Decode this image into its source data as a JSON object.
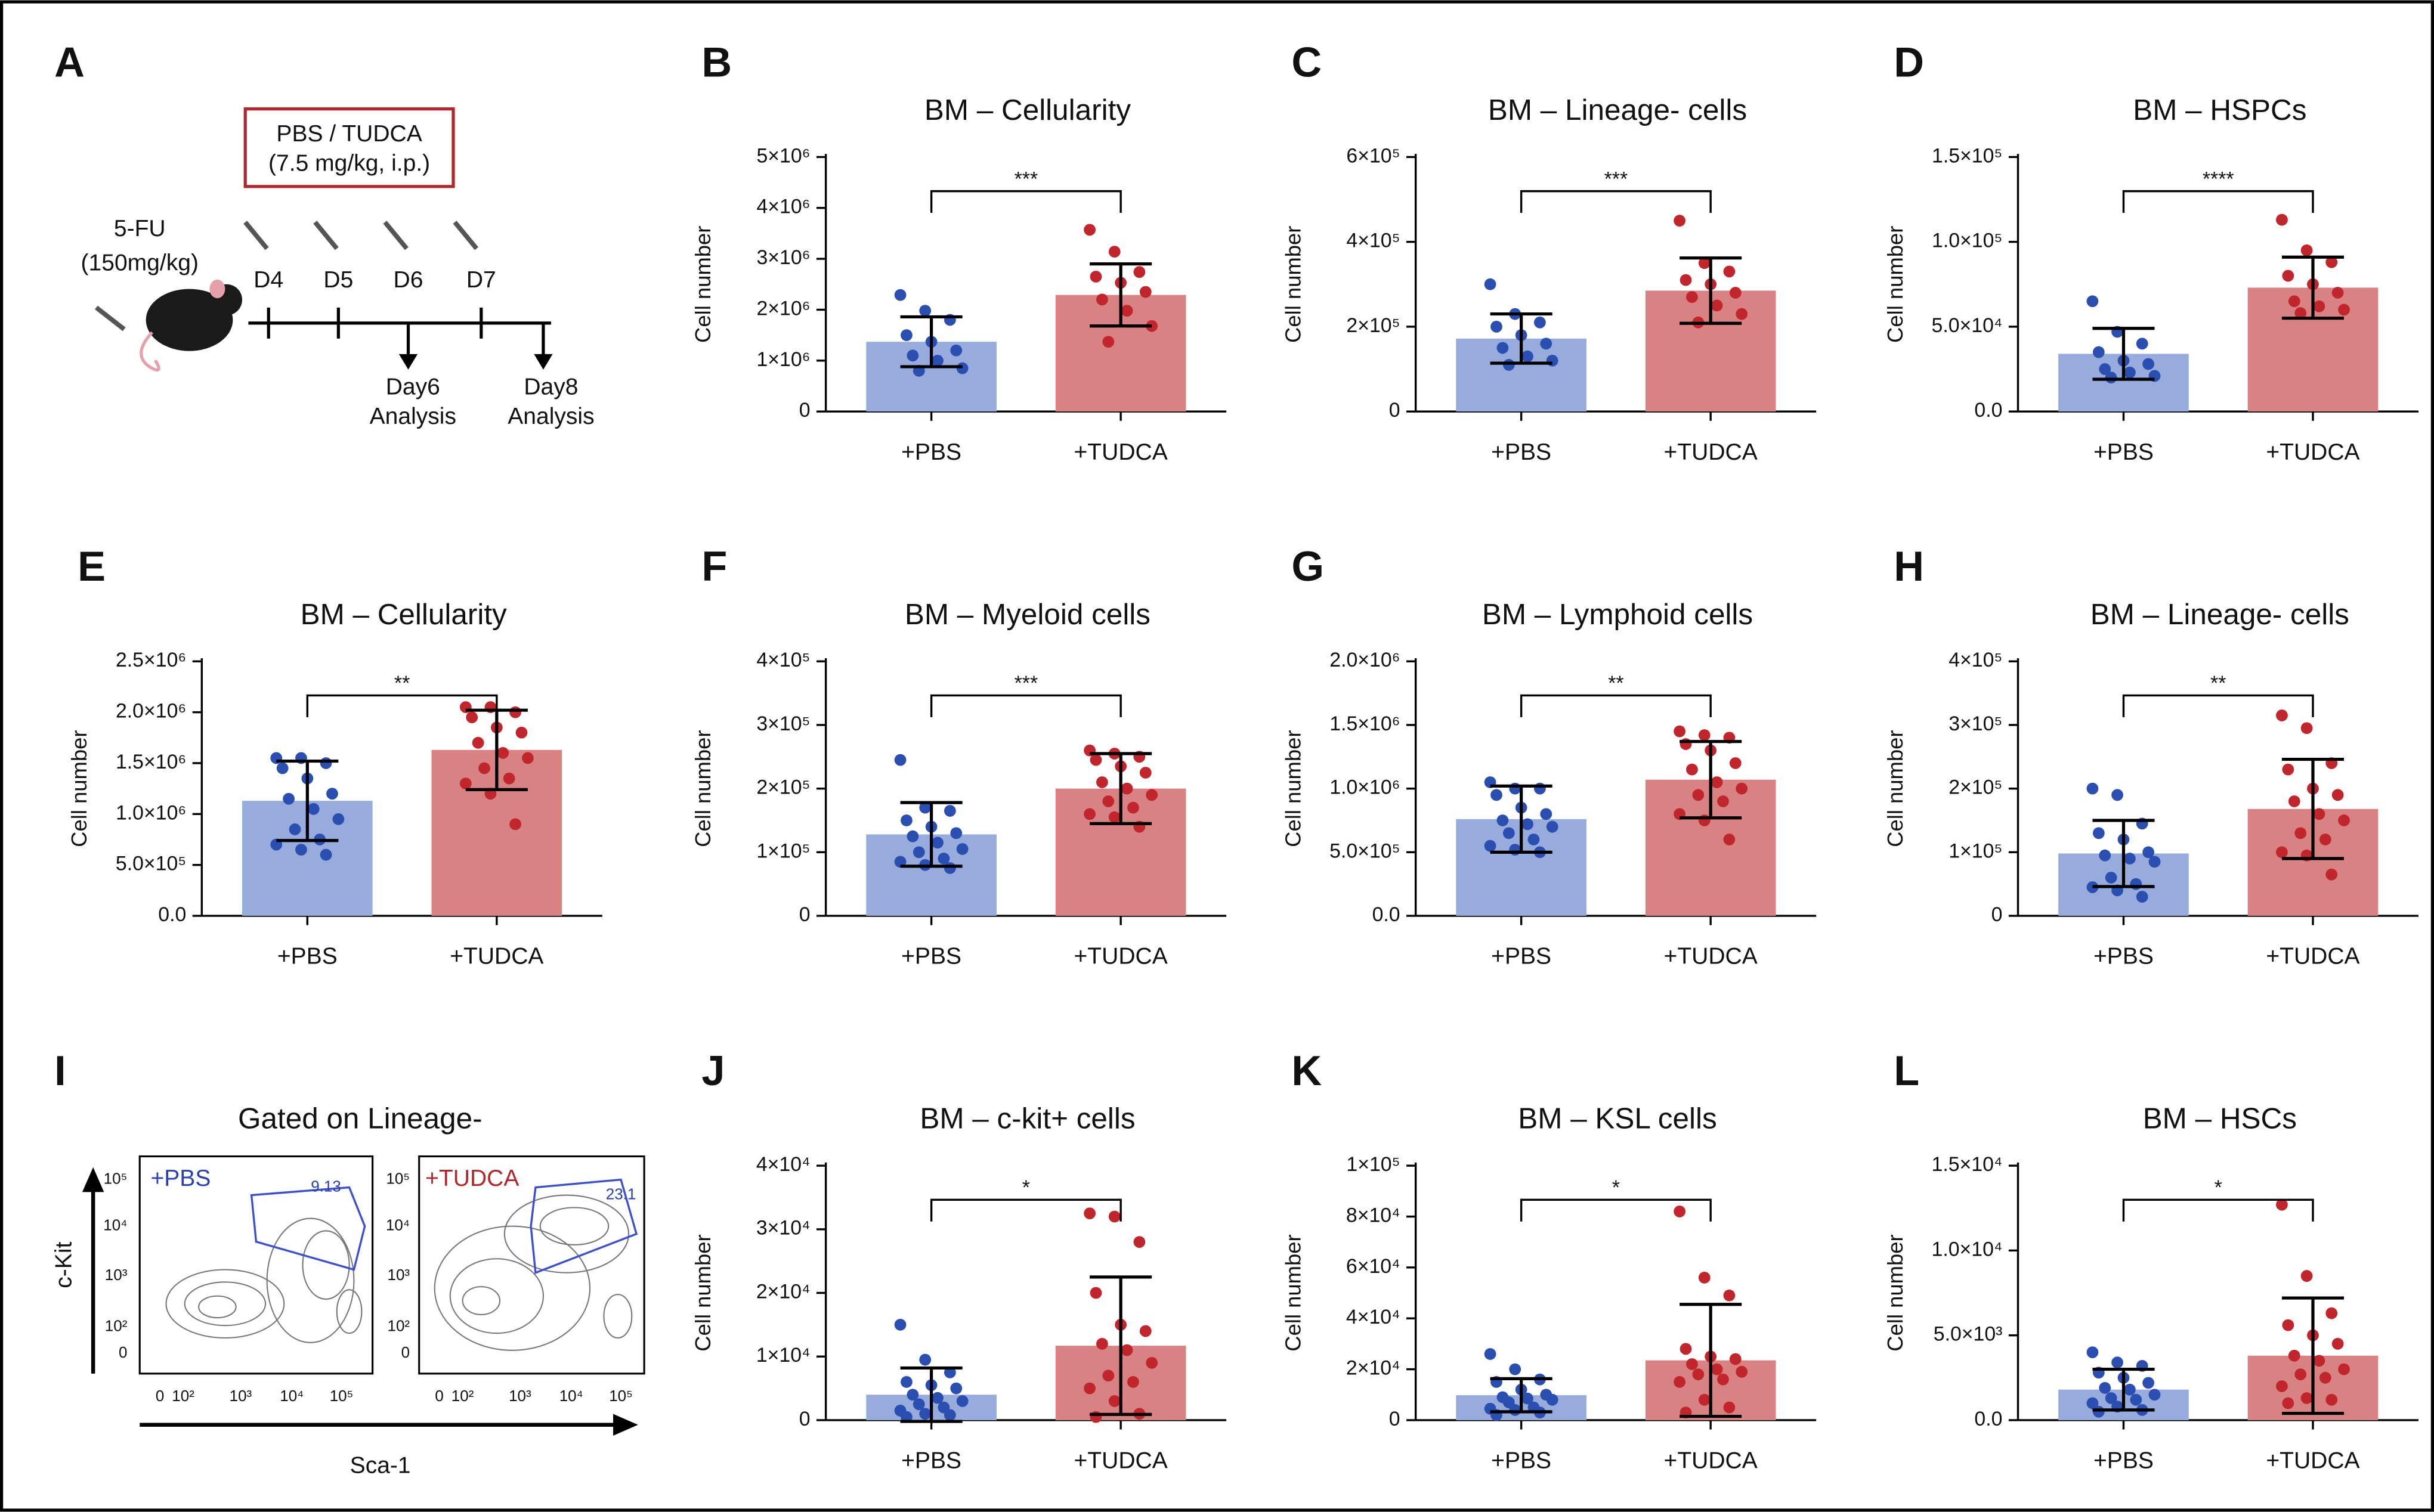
{
  "schematic": {
    "panel": "A",
    "treatment": "PBS / TUDCA",
    "dose": "(7.5 mg/kg, i.p.)",
    "drug": "5-FU",
    "drug_dose": "(150mg/kg)",
    "days": [
      "D4",
      "D5",
      "D6",
      "D7"
    ],
    "analyses": [
      [
        "Day6",
        "Analysis"
      ],
      [
        "Day8",
        "Analysis"
      ]
    ]
  },
  "flow": {
    "panel": "I",
    "title": "Gated on Lineage-",
    "samples": [
      "+PBS",
      "+TUDCA"
    ],
    "gates": [
      "9.13",
      "23.1"
    ],
    "y_axis": "c-Kit",
    "x_axis": "Sca-1",
    "yticks": [
      "10⁵",
      "10⁴",
      "10³",
      "10²",
      "0"
    ],
    "xticks": [
      "0",
      "10²",
      "10³",
      "10⁴",
      "10⁵"
    ]
  },
  "chart_data": [
    {
      "type": "bar",
      "panel": "B",
      "title": "BM – Cellularity",
      "y_label": "Cell number",
      "categories": [
        "+PBS",
        "+TUDCA"
      ],
      "values": [
        1370000.0,
        2290000.0
      ],
      "errors": [
        490000.0,
        610000.0
      ],
      "significance": "***",
      "points": [
        [
          2290000.0,
          1980000.0,
          1800000.0,
          1500000.0,
          1370000.0,
          1200000.0,
          1100000.0,
          1000000.0,
          850000.0,
          800000.0
        ],
        [
          3570000.0,
          3140000.0,
          2740000.0,
          2650000.0,
          2530000.0,
          2350000.0,
          2200000.0,
          1980000.0,
          1680000.0,
          1370000.0
        ]
      ],
      "ylim": [
        0,
        5000000.0
      ],
      "yticks": [
        0,
        {
          "value": 1000000.0,
          "label": "1×10⁶"
        },
        {
          "value": 2000000.0,
          "label": "2×10⁶"
        },
        {
          "value": 3000000.0,
          "label": "3×10⁶"
        },
        {
          "value": 4000000.0,
          "label": "4×10⁶"
        },
        {
          "value": 5000000.0,
          "label": "5×10⁶"
        }
      ],
      "colors": [
        "#97abdc",
        "#d98283"
      ],
      "point_colors": [
        "#2a4fb0",
        "#c0262b"
      ]
    },
    {
      "type": "bar",
      "panel": "C",
      "title": "BM – Lineage- cells",
      "y_label": "Cell number",
      "categories": [
        "+PBS",
        "+TUDCA"
      ],
      "values": [
        172000.0,
        285000.0
      ],
      "errors": [
        58000.0,
        77000.0
      ],
      "significance": "***",
      "points": [
        [
          300000.0,
          230000.0,
          210000.0,
          200000.0,
          180000.0,
          160000.0,
          150000.0,
          130000.0,
          120000.0,
          110000.0
        ],
        [
          450000.0,
          350000.0,
          330000.0,
          310000.0,
          300000.0,
          280000.0,
          270000.0,
          250000.0,
          230000.0,
          210000.0
        ]
      ],
      "ylim": [
        0,
        600000.0
      ],
      "yticks": [
        0,
        {
          "value": 200000.0,
          "label": "2×10⁵"
        },
        {
          "value": 400000.0,
          "label": "4×10⁵"
        },
        {
          "value": 600000.0,
          "label": "6×10⁵"
        }
      ],
      "colors": [
        "#97abdc",
        "#d98283"
      ],
      "point_colors": [
        "#2a4fb0",
        "#c0262b"
      ]
    },
    {
      "type": "bar",
      "panel": "D",
      "title": "BM – HSPCs",
      "y_label": "Cell number",
      "categories": [
        "+PBS",
        "+TUDCA"
      ],
      "values": [
        34000.0,
        73000.0
      ],
      "errors": [
        15000.0,
        18000.0
      ],
      "significance": "****",
      "points": [
        [
          65000.0,
          47000.0,
          40000.0,
          35000.0,
          30000.0,
          28000.0,
          25000.0,
          23000.0,
          21000.0,
          20000.0
        ],
        [
          113000.0,
          95000.0,
          88000.0,
          80000.0,
          75000.0,
          70000.0,
          65000.0,
          62000.0,
          60000.0,
          58000.0
        ]
      ],
      "ylim": [
        0,
        150000.0
      ],
      "yticks": [
        {
          "value": 0,
          "label": "0.0"
        },
        {
          "value": 50000.0,
          "label": "5.0×10⁴"
        },
        {
          "value": 100000.0,
          "label": "1.0×10⁵"
        },
        {
          "value": 150000.0,
          "label": "1.5×10⁵"
        }
      ],
      "colors": [
        "#97abdc",
        "#d98283"
      ],
      "point_colors": [
        "#2a4fb0",
        "#c0262b"
      ]
    },
    {
      "type": "bar",
      "panel": "E",
      "title": "BM – Cellularity",
      "y_label": "Cell number",
      "categories": [
        "+PBS",
        "+TUDCA"
      ],
      "values": [
        1130000.0,
        1630000.0
      ],
      "errors": [
        390000.0,
        390000.0
      ],
      "significance": "**",
      "points": [
        [
          1550000.0,
          1550000.0,
          1500000.0,
          1450000.0,
          1350000.0,
          1200000.0,
          1150000.0,
          1050000.0,
          950000.0,
          850000.0,
          750000.0,
          700000.0,
          650000.0,
          600000.0
        ],
        [
          2050000.0,
          2050000.0,
          2000000.0,
          1950000.0,
          1850000.0,
          1800000.0,
          1700000.0,
          1600000.0,
          1550000.0,
          1450000.0,
          1350000.0,
          1300000.0,
          1200000.0,
          900000.0
        ]
      ],
      "ylim": [
        0,
        2500000.0
      ],
      "yticks": [
        {
          "value": 0,
          "label": "0.0"
        },
        {
          "value": 500000.0,
          "label": "5.0×10⁵"
        },
        {
          "value": 1000000.0,
          "label": "1.0×10⁶"
        },
        {
          "value": 1500000.0,
          "label": "1.5×10⁶"
        },
        {
          "value": 2000000.0,
          "label": "2.0×10⁶"
        },
        {
          "value": 2500000.0,
          "label": "2.5×10⁶"
        }
      ],
      "colors": [
        "#97abdc",
        "#d98283"
      ],
      "point_colors": [
        "#2a4fb0",
        "#c0262b"
      ]
    },
    {
      "type": "bar",
      "panel": "F",
      "title": "BM – Myeloid cells",
      "y_label": "Cell number",
      "categories": [
        "+PBS",
        "+TUDCA"
      ],
      "values": [
        128000.0,
        200000.0
      ],
      "errors": [
        50000.0,
        55000.0
      ],
      "significance": "***",
      "points": [
        [
          245000.0,
          170000.0,
          165000.0,
          150000.0,
          140000.0,
          130000.0,
          125000.0,
          115000.0,
          105000.0,
          100000.0,
          90000.0,
          85000.0,
          80000.0,
          75000.0
        ],
        [
          260000.0,
          255000.0,
          250000.0,
          245000.0,
          235000.0,
          225000.0,
          210000.0,
          200000.0,
          190000.0,
          180000.0,
          170000.0,
          160000.0,
          155000.0,
          140000.0
        ]
      ],
      "ylim": [
        0,
        400000.0
      ],
      "yticks": [
        0,
        {
          "value": 100000.0,
          "label": "1×10⁵"
        },
        {
          "value": 200000.0,
          "label": "2×10⁵"
        },
        {
          "value": 300000.0,
          "label": "3×10⁵"
        },
        {
          "value": 400000.0,
          "label": "4×10⁵"
        }
      ],
      "colors": [
        "#97abdc",
        "#d98283"
      ],
      "point_colors": [
        "#2a4fb0",
        "#c0262b"
      ]
    },
    {
      "type": "bar",
      "panel": "G",
      "title": "BM – Lymphoid cells",
      "y_label": "Cell number",
      "categories": [
        "+PBS",
        "+TUDCA"
      ],
      "values": [
        760000.0,
        1070000.0
      ],
      "errors": [
        260000.0,
        300000.0
      ],
      "significance": "**",
      "points": [
        [
          1050000.0,
          1000000.0,
          1000000.0,
          950000.0,
          850000.0,
          800000.0,
          750000.0,
          720000.0,
          700000.0,
          650000.0,
          600000.0,
          550000.0,
          520000.0,
          500000.0
        ],
        [
          1450000.0,
          1420000.0,
          1400000.0,
          1350000.0,
          1300000.0,
          1200000.0,
          1150000.0,
          1050000.0,
          1000000.0,
          950000.0,
          900000.0,
          800000.0,
          750000.0,
          600000.0
        ]
      ],
      "ylim": [
        0,
        2000000.0
      ],
      "yticks": [
        {
          "value": 0,
          "label": "0.0"
        },
        {
          "value": 500000.0,
          "label": "5.0×10⁵"
        },
        {
          "value": 1000000.0,
          "label": "1.0×10⁶"
        },
        {
          "value": 1500000.0,
          "label": "1.5×10⁶"
        },
        {
          "value": 2000000.0,
          "label": "2.0×10⁶"
        }
      ],
      "colors": [
        "#97abdc",
        "#d98283"
      ],
      "point_colors": [
        "#2a4fb0",
        "#c0262b"
      ]
    },
    {
      "type": "bar",
      "panel": "H",
      "title": "BM – Lineage- cells",
      "y_label": "Cell number",
      "categories": [
        "+PBS",
        "+TUDCA"
      ],
      "values": [
        98000.0,
        168000.0
      ],
      "errors": [
        52000.0,
        78000.0
      ],
      "significance": "**",
      "points": [
        [
          200000.0,
          190000.0,
          145000.0,
          130000.0,
          120000.0,
          100000.0,
          95000.0,
          90000.0,
          85000.0,
          60000.0,
          50000.0,
          45000.0,
          40000.0,
          30000.0
        ],
        [
          315000.0,
          295000.0,
          240000.0,
          230000.0,
          200000.0,
          190000.0,
          180000.0,
          160000.0,
          150000.0,
          130000.0,
          120000.0,
          100000.0,
          95000.0,
          65000.0
        ]
      ],
      "ylim": [
        0,
        400000.0
      ],
      "yticks": [
        0,
        {
          "value": 100000.0,
          "label": "1×10⁵"
        },
        {
          "value": 200000.0,
          "label": "2×10⁵"
        },
        {
          "value": 300000.0,
          "label": "3×10⁵"
        },
        {
          "value": 400000.0,
          "label": "4×10⁵"
        }
      ],
      "colors": [
        "#97abdc",
        "#d98283"
      ],
      "point_colors": [
        "#2a4fb0",
        "#c0262b"
      ]
    },
    {
      "type": "bar",
      "panel": "J",
      "title": "BM – c-kit+ cells",
      "y_label": "Cell number",
      "categories": [
        "+PBS",
        "+TUDCA"
      ],
      "values": [
        4000.0,
        11700.0
      ],
      "errors": [
        4200.0,
        10800.0
      ],
      "significance": "*",
      "points": [
        [
          15000.0,
          9500.0,
          7500.0,
          6000.0,
          5500.0,
          5000.0,
          4000.0,
          3500.0,
          3000.0,
          2500.0,
          2000.0,
          1500.0,
          1000.0,
          800.0,
          500.0
        ],
        [
          32500.0,
          32000.0,
          28000.0,
          20000.0,
          15000.0,
          14000.0,
          12000.0,
          11000.0,
          9000.0,
          7000.0,
          6000.0,
          5000.0,
          3000.0,
          1000.0,
          500.0
        ]
      ],
      "ylim": [
        0,
        40000.0
      ],
      "yticks": [
        0,
        {
          "value": 10000.0,
          "label": "1×10⁴"
        },
        {
          "value": 20000.0,
          "label": "2×10⁴"
        },
        {
          "value": 30000.0,
          "label": "3×10⁴"
        },
        {
          "value": 40000.0,
          "label": "4×10⁴"
        }
      ],
      "colors": [
        "#97abdc",
        "#d98283"
      ],
      "point_colors": [
        "#2a4fb0",
        "#c0262b"
      ]
    },
    {
      "type": "bar",
      "panel": "K",
      "title": "BM – KSL cells",
      "y_label": "Cell number",
      "categories": [
        "+PBS",
        "+TUDCA"
      ],
      "values": [
        9800.0,
        23500.0
      ],
      "errors": [
        6500.0,
        22000.0
      ],
      "significance": "*",
      "points": [
        [
          26000.0,
          20000.0,
          16000.0,
          15000.0,
          12000.0,
          10000.0,
          9000.0,
          8500.0,
          8000.0,
          7000.0,
          5000.0,
          4500.0,
          4000.0,
          3000.0,
          2000.0
        ],
        [
          82000.0,
          56000.0,
          49000.0,
          28000.0,
          25000.0,
          24000.0,
          22000.0,
          20000.0,
          19000.0,
          18000.0,
          16000.0,
          15000.0,
          8000.0,
          5000.0,
          3000.0
        ]
      ],
      "ylim": [
        0,
        100000.0
      ],
      "yticks": [
        0,
        {
          "value": 20000.0,
          "label": "2×10⁴"
        },
        {
          "value": 40000.0,
          "label": "4×10⁴"
        },
        {
          "value": 60000.0,
          "label": "6×10⁴"
        },
        {
          "value": 80000.0,
          "label": "8×10⁴"
        },
        {
          "value": 100000.0,
          "label": "1×10⁵"
        }
      ],
      "colors": [
        "#97abdc",
        "#d98283"
      ],
      "point_colors": [
        "#2a4fb0",
        "#c0262b"
      ]
    },
    {
      "type": "bar",
      "panel": "L",
      "title": "BM – HSCs",
      "y_label": "Cell number",
      "categories": [
        "+PBS",
        "+TUDCA"
      ],
      "values": [
        1800.0,
        3800.0
      ],
      "errors": [
        1200.0,
        3400.0
      ],
      "significance": "*",
      "points": [
        [
          4000.0,
          3400.0,
          3200.0,
          2800.0,
          2500.0,
          2200.0,
          1900.0,
          1800.0,
          1500.0,
          1300.0,
          1200.0,
          1000.0,
          800.0,
          600.0,
          500.0
        ],
        [
          12700.0,
          8500.0,
          6300.0,
          5600.0,
          5000.0,
          4500.0,
          3800.0,
          3500.0,
          3000.0,
          2700.0,
          2500.0,
          2000.0,
          1300.0,
          1200.0,
          1000.0
        ]
      ],
      "ylim": [
        0,
        15000.0
      ],
      "yticks": [
        {
          "value": 0,
          "label": "0.0"
        },
        {
          "value": 5000.0,
          "label": "5.0×10³"
        },
        {
          "value": 10000.0,
          "label": "1.0×10⁴"
        },
        {
          "value": 15000.0,
          "label": "1.5×10⁴"
        }
      ],
      "colors": [
        "#97abdc",
        "#d98283"
      ],
      "point_colors": [
        "#2a4fb0",
        "#c0262b"
      ]
    }
  ]
}
